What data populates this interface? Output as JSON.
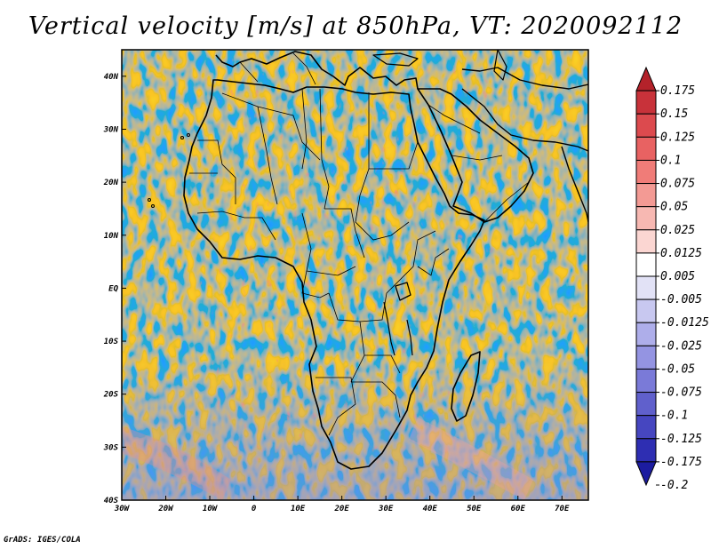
{
  "title": "Vertical velocity [m/s] at 850hPa, VT: 2020092112",
  "credit": "GrADS: IGES/COLA",
  "map": {
    "lon_range": [
      -30,
      76
    ],
    "lat_range": [
      -40,
      45
    ],
    "x_ticks": [
      {
        "value": -30,
        "label": "30W"
      },
      {
        "value": -20,
        "label": "20W"
      },
      {
        "value": -10,
        "label": "10W"
      },
      {
        "value": 0,
        "label": "0"
      },
      {
        "value": 10,
        "label": "10E"
      },
      {
        "value": 20,
        "label": "20E"
      },
      {
        "value": 30,
        "label": "30E"
      },
      {
        "value": 40,
        "label": "40E"
      },
      {
        "value": 50,
        "label": "50E"
      },
      {
        "value": 60,
        "label": "60E"
      },
      {
        "value": 70,
        "label": "70E"
      }
    ],
    "y_ticks": [
      {
        "value": 40,
        "label": "40N"
      },
      {
        "value": 30,
        "label": "30N"
      },
      {
        "value": 20,
        "label": "20N"
      },
      {
        "value": 10,
        "label": "10N"
      },
      {
        "value": 0,
        "label": "EQ"
      },
      {
        "value": -10,
        "label": "10S"
      },
      {
        "value": -20,
        "label": "20S"
      },
      {
        "value": -30,
        "label": "30S"
      },
      {
        "value": -40,
        "label": "40S"
      }
    ]
  },
  "colorbar": {
    "labels": [
      "0.175",
      "0.15",
      "0.125",
      "0.1",
      "0.075",
      "0.05",
      "0.025",
      "0.0125",
      "0.005",
      "-0.005",
      "-0.0125",
      "-0.025",
      "-0.05",
      "-0.075",
      "-0.1",
      "-0.125",
      "-0.175",
      "-0.2"
    ],
    "colors": [
      "#b4222a",
      "#c8323a",
      "#dc4a4e",
      "#e86262",
      "#f07c78",
      "#f39a94",
      "#f7b8b2",
      "#fbd6d2",
      "#ffffff",
      "#e2e2f6",
      "#c8c8f0",
      "#aeaeea",
      "#9494e2",
      "#7a7ad8",
      "#6060cc",
      "#4646c0",
      "#2e2eb2",
      "#1c1ca0"
    ]
  }
}
